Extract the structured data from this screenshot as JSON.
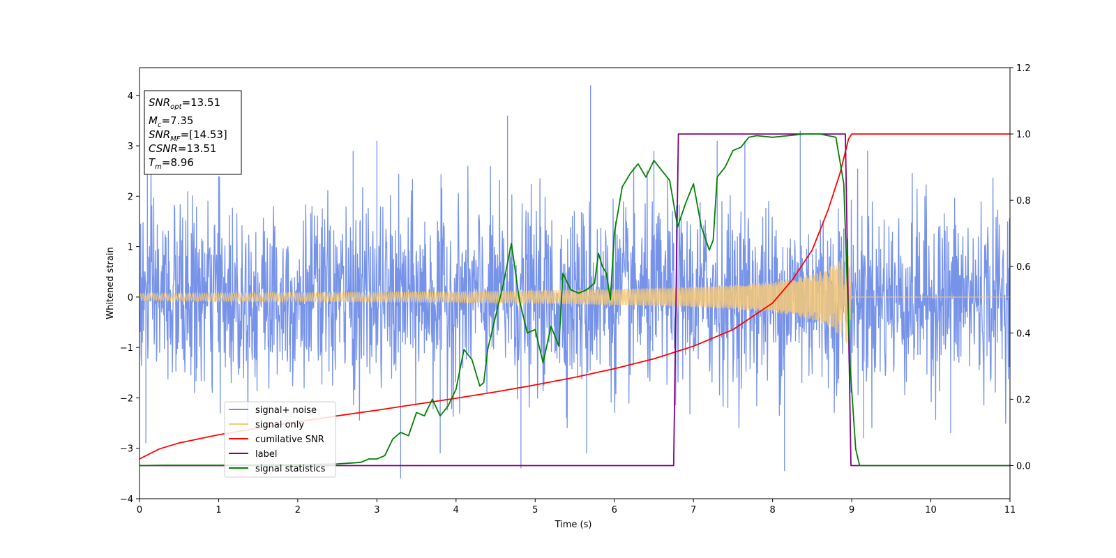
{
  "chart_data": {
    "type": "line",
    "xlabel": "Time (s)",
    "ylabel": "Whitened strain",
    "xlim": [
      0,
      11
    ],
    "ylim_left": [
      -4,
      4.55
    ],
    "ylim_right": [
      -0.1,
      1.2
    ],
    "x_ticks": [
      0,
      1,
      2,
      3,
      4,
      5,
      6,
      7,
      8,
      9,
      10,
      11
    ],
    "y_ticks_left": [
      -4,
      -3,
      -2,
      -1,
      0,
      1,
      2,
      3,
      4
    ],
    "y_ticks_right": [
      0.0,
      0.2,
      0.4,
      0.6,
      0.8,
      1.0,
      1.2
    ],
    "tick_labels": {
      "x": [
        "0",
        "1",
        "2",
        "3",
        "4",
        "5",
        "6",
        "7",
        "8",
        "9",
        "10",
        "11"
      ],
      "y_left": [
        "−4",
        "−3",
        "−2",
        "−1",
        "0",
        "1",
        "2",
        "3",
        "4"
      ],
      "y_right": [
        "0.0",
        "0.2",
        "0.4",
        "0.6",
        "0.8",
        "1.0",
        "1.2"
      ]
    },
    "grid": false,
    "legend_position": "lower-left",
    "legend": [
      {
        "label": "signal+ noise",
        "color": "#6f8de8"
      },
      {
        "label": "signal only",
        "color": "#f5c878"
      },
      {
        "label": "cumilative SNR",
        "color": "#ff0000"
      },
      {
        "label": "label",
        "color": "#800080"
      },
      {
        "label": "signal statistics",
        "color": "#008000"
      }
    ],
    "annotation": {
      "lines": [
        {
          "sym": "SNR",
          "sub": "opt",
          "val": "=13.51"
        },
        {
          "sym": "M",
          "sub": "c",
          "val": "=7.35"
        },
        {
          "sym": "SNR",
          "sub": "MF",
          "val": "=[14.53]"
        },
        {
          "sym": "CSNR",
          "sub": "",
          "val": "=13.51"
        },
        {
          "sym": "T",
          "sub": "m",
          "val": "=8.96"
        }
      ]
    },
    "series": [
      {
        "name": "signal+ noise",
        "axis": "left",
        "color": "#6f8de8",
        "description_values": "dense noise band roughly between -2.3 and 2.3, spikes",
        "x_range": [
          0,
          11
        ],
        "spikes": [
          [
            0.1,
            2.5
          ],
          [
            0.08,
            -2.9
          ],
          [
            1.0,
            2.4
          ],
          [
            2.7,
            2.9
          ],
          [
            3.0,
            3.1
          ],
          [
            3.3,
            -3.6
          ],
          [
            3.8,
            -3.1
          ],
          [
            4.65,
            3.6
          ],
          [
            4.82,
            -3.4
          ],
          [
            5.7,
            4.2
          ],
          [
            5.65,
            -3.1
          ],
          [
            6.5,
            2.9
          ],
          [
            7.3,
            3.1
          ],
          [
            7.65,
            3.1
          ],
          [
            8.15,
            -3.45
          ],
          [
            8.35,
            3.3
          ],
          [
            9.2,
            2.9
          ],
          [
            9.15,
            -2.8
          ],
          [
            10.25,
            -2.7
          ]
        ]
      },
      {
        "name": "signal only",
        "axis": "left",
        "color": "#f5c878",
        "envelope": [
          [
            0,
            0.07
          ],
          [
            1,
            0.08
          ],
          [
            2,
            0.09
          ],
          [
            3,
            0.1
          ],
          [
            4,
            0.11
          ],
          [
            5,
            0.13
          ],
          [
            6,
            0.16
          ],
          [
            7,
            0.2
          ],
          [
            7.5,
            0.24
          ],
          [
            8,
            0.3
          ],
          [
            8.5,
            0.45
          ],
          [
            8.75,
            0.62
          ],
          [
            8.9,
            0.85
          ],
          [
            8.96,
            1.05
          ],
          [
            9.0,
            0.0
          ]
        ]
      },
      {
        "name": "cumilative SNR",
        "axis": "right",
        "color": "#ff0000",
        "points": [
          [
            0.0,
            0.02
          ],
          [
            0.25,
            0.05
          ],
          [
            0.5,
            0.068
          ],
          [
            1.0,
            0.093
          ],
          [
            1.5,
            0.113
          ],
          [
            2.0,
            0.132
          ],
          [
            2.5,
            0.15
          ],
          [
            3.0,
            0.167
          ],
          [
            3.5,
            0.185
          ],
          [
            4.0,
            0.203
          ],
          [
            4.5,
            0.222
          ],
          [
            5.0,
            0.243
          ],
          [
            5.5,
            0.266
          ],
          [
            6.0,
            0.292
          ],
          [
            6.5,
            0.322
          ],
          [
            7.0,
            0.36
          ],
          [
            7.5,
            0.41
          ],
          [
            8.0,
            0.49
          ],
          [
            8.25,
            0.56
          ],
          [
            8.5,
            0.65
          ],
          [
            8.7,
            0.77
          ],
          [
            8.85,
            0.88
          ],
          [
            8.96,
            0.985
          ],
          [
            9.0,
            1.0
          ],
          [
            11.0,
            1.0
          ]
        ]
      },
      {
        "name": "label",
        "axis": "right",
        "color": "#800080",
        "points": [
          [
            0.0,
            0.0
          ],
          [
            6.75,
            0.0
          ],
          [
            6.81,
            1.0
          ],
          [
            8.92,
            1.0
          ],
          [
            8.99,
            0.0
          ],
          [
            11.0,
            0.0
          ]
        ]
      },
      {
        "name": "signal statistics",
        "axis": "right",
        "color": "#008000",
        "points": [
          [
            0.0,
            0.0
          ],
          [
            0.3,
            0.001
          ],
          [
            1.0,
            0.001
          ],
          [
            2.0,
            0.003
          ],
          [
            2.5,
            0.005
          ],
          [
            2.7,
            0.008
          ],
          [
            2.8,
            0.01
          ],
          [
            2.9,
            0.02
          ],
          [
            3.0,
            0.02
          ],
          [
            3.1,
            0.03
          ],
          [
            3.2,
            0.08
          ],
          [
            3.3,
            0.1
          ],
          [
            3.4,
            0.09
          ],
          [
            3.5,
            0.16
          ],
          [
            3.6,
            0.15
          ],
          [
            3.7,
            0.2
          ],
          [
            3.8,
            0.15
          ],
          [
            3.9,
            0.18
          ],
          [
            4.0,
            0.23
          ],
          [
            4.1,
            0.35
          ],
          [
            4.2,
            0.32
          ],
          [
            4.3,
            0.24
          ],
          [
            4.35,
            0.25
          ],
          [
            4.4,
            0.35
          ],
          [
            4.5,
            0.45
          ],
          [
            4.6,
            0.55
          ],
          [
            4.7,
            0.67
          ],
          [
            4.8,
            0.5
          ],
          [
            4.9,
            0.4
          ],
          [
            5.0,
            0.41
          ],
          [
            5.1,
            0.31
          ],
          [
            5.2,
            0.42
          ],
          [
            5.3,
            0.36
          ],
          [
            5.35,
            0.58
          ],
          [
            5.45,
            0.53
          ],
          [
            5.55,
            0.52
          ],
          [
            5.65,
            0.53
          ],
          [
            5.75,
            0.55
          ],
          [
            5.8,
            0.64
          ],
          [
            5.85,
            0.6
          ],
          [
            5.9,
            0.58
          ],
          [
            5.95,
            0.5
          ],
          [
            6.0,
            0.7
          ],
          [
            6.1,
            0.84
          ],
          [
            6.2,
            0.88
          ],
          [
            6.3,
            0.91
          ],
          [
            6.4,
            0.87
          ],
          [
            6.5,
            0.92
          ],
          [
            6.6,
            0.89
          ],
          [
            6.7,
            0.86
          ],
          [
            6.8,
            0.72
          ],
          [
            6.9,
            0.79
          ],
          [
            7.0,
            0.85
          ],
          [
            7.1,
            0.72
          ],
          [
            7.2,
            0.65
          ],
          [
            7.25,
            0.68
          ],
          [
            7.3,
            0.87
          ],
          [
            7.4,
            0.9
          ],
          [
            7.5,
            0.95
          ],
          [
            7.6,
            0.96
          ],
          [
            7.7,
            0.99
          ],
          [
            7.8,
            0.995
          ],
          [
            8.0,
            0.99
          ],
          [
            8.2,
            0.995
          ],
          [
            8.4,
            1.0
          ],
          [
            8.6,
            1.0
          ],
          [
            8.8,
            0.99
          ],
          [
            8.9,
            0.85
          ],
          [
            8.98,
            0.3
          ],
          [
            9.05,
            0.05
          ],
          [
            9.1,
            0.0
          ],
          [
            11.0,
            0.0
          ]
        ]
      }
    ]
  }
}
